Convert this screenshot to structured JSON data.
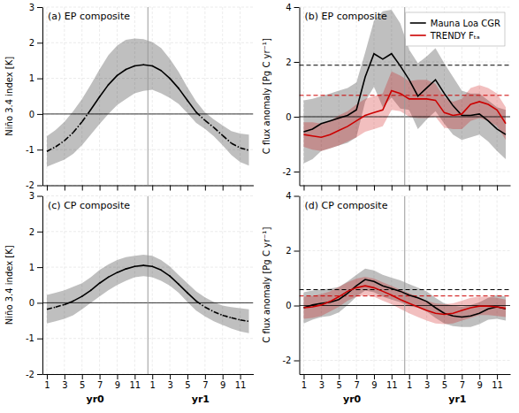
{
  "chart_data": [
    {
      "type": "line",
      "title": "(a) EP composite",
      "ylabel": "Niño 3.4 index [K]",
      "categories": [
        "1",
        null,
        "3",
        null,
        "5",
        null,
        "7",
        null,
        "9",
        null,
        "11",
        null,
        "1",
        null,
        "3",
        null,
        "5",
        null,
        "7",
        null,
        "9",
        null,
        "11",
        null
      ],
      "tick_labels": "y",
      "ylim": [
        -2.0,
        3.0
      ],
      "yticks": [
        -2.0,
        -1.0,
        0.0,
        1.0,
        2.0,
        3.0
      ],
      "grid": true,
      "series": [
        {
          "color": "#000000",
          "line_style": "dashdot-negative",
          "values": [
            -1.05,
            -0.92,
            -0.75,
            -0.52,
            -0.22,
            0.12,
            0.48,
            0.82,
            1.08,
            1.25,
            1.35,
            1.38,
            1.35,
            1.22,
            1.0,
            0.72,
            0.38,
            0.05,
            -0.18,
            -0.38,
            -0.6,
            -0.82,
            -0.95,
            -1.02
          ],
          "upper": [
            -0.62,
            -0.45,
            -0.22,
            0.08,
            0.42,
            0.82,
            1.25,
            1.65,
            1.92,
            2.08,
            2.12,
            2.1,
            2.02,
            1.85,
            1.55,
            1.18,
            0.75,
            0.35,
            0.05,
            -0.15,
            -0.32,
            -0.48,
            -0.55,
            -0.58
          ],
          "lower": [
            -1.48,
            -1.38,
            -1.28,
            -1.12,
            -0.88,
            -0.58,
            -0.28,
            0.0,
            0.25,
            0.42,
            0.58,
            0.65,
            0.68,
            0.58,
            0.45,
            0.28,
            0.02,
            -0.25,
            -0.42,
            -0.62,
            -0.88,
            -1.15,
            -1.35,
            -1.45
          ]
        }
      ]
    },
    {
      "type": "line",
      "title": "(b) EP composite",
      "ylabel": "C flux anomaly [Pg C yr⁻¹]",
      "categories": [
        "1",
        null,
        "3",
        null,
        "5",
        null,
        "7",
        null,
        "9",
        null,
        "11",
        null,
        "1",
        null,
        "3",
        null,
        "5",
        null,
        "7",
        null,
        "9",
        null,
        "11",
        null
      ],
      "tick_labels": "y",
      "ylim": [
        -2.5,
        4.0
      ],
      "yticks": [
        -2.0,
        0.0,
        2.0,
        4.0
      ],
      "grid": true,
      "legend": "upper right",
      "series": [
        {
          "name": "Mauna Loa CGR",
          "color": "#000000",
          "line_style": "solid",
          "values": [
            -0.55,
            -0.45,
            -0.25,
            -0.15,
            -0.05,
            0.05,
            0.25,
            1.45,
            2.3,
            2.1,
            2.3,
            1.85,
            1.35,
            0.75,
            1.05,
            1.35,
            0.85,
            0.4,
            0.05,
            0.05,
            0.1,
            -0.15,
            -0.45,
            -0.65
          ],
          "upper": [
            0.6,
            0.65,
            0.75,
            0.85,
            0.95,
            1.05,
            1.25,
            2.35,
            3.5,
            3.85,
            3.9,
            3.4,
            2.45,
            1.95,
            2.2,
            2.5,
            1.95,
            1.45,
            0.95,
            0.85,
            0.85,
            0.6,
            0.35,
            0.25
          ],
          "lower": [
            -1.7,
            -1.55,
            -1.25,
            -1.15,
            -1.05,
            -0.95,
            -0.75,
            0.55,
            1.1,
            0.35,
            0.7,
            0.3,
            0.25,
            -0.45,
            -0.1,
            0.2,
            -0.25,
            -0.65,
            -0.85,
            -0.75,
            -0.65,
            -0.9,
            -1.25,
            -1.55
          ],
          "reference": 1.88
        },
        {
          "name": "TRENDY Fₜₐ",
          "color": "#cc0000",
          "line_style": "solid",
          "values": [
            -0.65,
            -0.7,
            -0.75,
            -0.65,
            -0.5,
            -0.35,
            -0.15,
            0.05,
            0.15,
            0.25,
            0.95,
            0.85,
            0.65,
            0.65,
            0.65,
            0.6,
            0.15,
            0.05,
            0.1,
            0.45,
            0.55,
            0.45,
            0.25,
            -0.25
          ],
          "upper": [
            -0.2,
            -0.2,
            -0.25,
            -0.15,
            0.05,
            0.2,
            0.45,
            0.65,
            0.75,
            0.85,
            1.65,
            1.5,
            1.3,
            1.35,
            1.35,
            1.2,
            0.7,
            0.55,
            0.65,
            1.05,
            1.15,
            1.05,
            0.85,
            0.35
          ],
          "lower": [
            -1.1,
            -1.2,
            -1.25,
            -1.15,
            -1.05,
            -0.9,
            -0.75,
            -0.55,
            -0.45,
            -0.35,
            0.25,
            0.2,
            0.0,
            -0.05,
            -0.05,
            0.0,
            -0.4,
            -0.45,
            -0.45,
            -0.15,
            -0.05,
            -0.15,
            -0.35,
            -0.85
          ],
          "reference": 0.78
        }
      ]
    },
    {
      "type": "line",
      "title": "(c) CP composite",
      "ylabel": "Niño 3.4 index [K]",
      "categories": [
        "1",
        null,
        "3",
        null,
        "5",
        null,
        "7",
        null,
        "9",
        null,
        "11",
        null,
        "1",
        null,
        "3",
        null,
        "5",
        null,
        "7",
        null,
        "9",
        null,
        "11",
        null
      ],
      "annotations": [
        "yr0",
        "yr1"
      ],
      "ylim": [
        -2.0,
        3.0
      ],
      "yticks": [
        -2.0,
        -1.0,
        0.0,
        1.0,
        2.0,
        3.0
      ],
      "grid": true,
      "series": [
        {
          "color": "#000000",
          "line_style": "dashdot-negative",
          "values": [
            -0.18,
            -0.12,
            -0.05,
            0.05,
            0.18,
            0.35,
            0.55,
            0.72,
            0.85,
            0.95,
            1.02,
            1.05,
            1.02,
            0.92,
            0.75,
            0.52,
            0.28,
            0.05,
            -0.12,
            -0.25,
            -0.35,
            -0.42,
            -0.48,
            -0.52
          ],
          "upper": [
            0.22,
            0.28,
            0.35,
            0.45,
            0.55,
            0.72,
            0.92,
            1.08,
            1.2,
            1.28,
            1.32,
            1.35,
            1.32,
            1.2,
            1.02,
            0.78,
            0.55,
            0.32,
            0.15,
            0.02,
            -0.08,
            -0.12,
            -0.15,
            -0.18
          ],
          "lower": [
            -0.58,
            -0.52,
            -0.45,
            -0.35,
            -0.18,
            0.0,
            0.18,
            0.35,
            0.5,
            0.62,
            0.72,
            0.75,
            0.72,
            0.62,
            0.48,
            0.28,
            0.02,
            -0.22,
            -0.38,
            -0.52,
            -0.62,
            -0.72,
            -0.8,
            -0.85
          ]
        }
      ]
    },
    {
      "type": "line",
      "title": "(d) CP composite",
      "ylabel": "C flux anomaly [Pg C yr⁻¹]",
      "categories": [
        "1",
        null,
        "3",
        null,
        "5",
        null,
        "7",
        null,
        "9",
        null,
        "11",
        null,
        "1",
        null,
        "3",
        null,
        "5",
        null,
        "7",
        null,
        "9",
        null,
        "11",
        null
      ],
      "annotations": [
        "yr0",
        "yr1"
      ],
      "ylim": [
        -2.5,
        4.0
      ],
      "yticks": [
        -2.0,
        0.0,
        2.0,
        4.0
      ],
      "grid": true,
      "series": [
        {
          "color": "#000000",
          "line_style": "solid",
          "values": [
            -0.08,
            0.02,
            0.08,
            0.12,
            0.22,
            0.45,
            0.72,
            0.95,
            0.88,
            0.72,
            0.62,
            0.52,
            0.38,
            0.28,
            0.15,
            -0.08,
            -0.28,
            -0.38,
            -0.42,
            -0.38,
            -0.28,
            -0.12,
            -0.05,
            -0.12
          ],
          "upper": [
            0.48,
            0.55,
            0.58,
            0.62,
            0.68,
            0.88,
            1.12,
            1.35,
            1.28,
            1.12,
            1.02,
            0.92,
            0.78,
            0.65,
            0.52,
            0.28,
            0.08,
            0.0,
            -0.05,
            0.02,
            0.12,
            0.28,
            0.38,
            0.32
          ],
          "lower": [
            -0.65,
            -0.52,
            -0.42,
            -0.38,
            -0.25,
            0.02,
            0.32,
            0.55,
            0.48,
            0.32,
            0.22,
            0.12,
            -0.02,
            -0.08,
            -0.22,
            -0.45,
            -0.65,
            -0.75,
            -0.78,
            -0.78,
            -0.68,
            -0.52,
            -0.48,
            -0.55
          ],
          "reference": 0.58
        },
        {
          "color": "#cc0000",
          "line_style": "solid",
          "values": [
            -0.08,
            -0.05,
            0.02,
            0.15,
            0.32,
            0.52,
            0.65,
            0.72,
            0.65,
            0.52,
            0.38,
            0.22,
            0.08,
            -0.05,
            -0.18,
            -0.28,
            -0.32,
            -0.28,
            -0.18,
            -0.08,
            -0.02,
            -0.02,
            -0.05,
            -0.1
          ],
          "upper": [
            0.32,
            0.35,
            0.42,
            0.52,
            0.68,
            0.85,
            0.98,
            1.05,
            0.98,
            0.85,
            0.72,
            0.58,
            0.45,
            0.32,
            0.18,
            0.08,
            0.05,
            0.08,
            0.18,
            0.28,
            0.32,
            0.32,
            0.28,
            0.22
          ],
          "lower": [
            -0.48,
            -0.45,
            -0.38,
            -0.22,
            -0.05,
            0.18,
            0.32,
            0.38,
            0.32,
            0.18,
            0.05,
            -0.12,
            -0.28,
            -0.42,
            -0.55,
            -0.65,
            -0.68,
            -0.65,
            -0.55,
            -0.45,
            -0.35,
            -0.35,
            -0.38,
            -0.42
          ],
          "reference": 0.35
        }
      ]
    }
  ]
}
